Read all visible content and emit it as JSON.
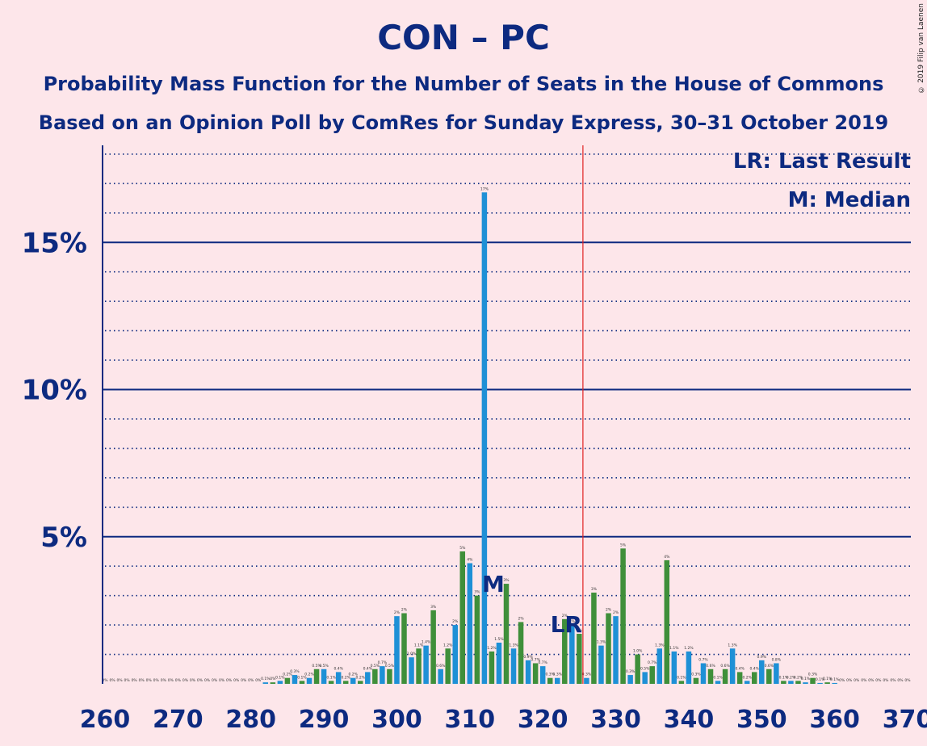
{
  "title": "CON – PC",
  "subtitle_line1": "Probability Mass Function for the Number of Seats in the House of Commons",
  "subtitle_line2": "Based on an Opinion Poll by ComRes for Sunday Express, 30–31 October 2019",
  "copyright": "© 2019 Filip van Laenen",
  "legend": {
    "lr": "LR: Last Result",
    "m": "M: Median"
  },
  "markers": {
    "lr_label": "LR",
    "m_label": "M",
    "last_result_seat": 326,
    "median_seat": 313
  },
  "colors": {
    "background": "#fde6ea",
    "blue": "#1e90d6",
    "green": "#3f8f3a",
    "axis": "#0d2a80",
    "last_result_line": "#e02020"
  },
  "chart_data": {
    "type": "bar",
    "xlim": [
      260,
      370
    ],
    "ylim": [
      0,
      18
    ],
    "yticks": [
      {
        "value": 5,
        "label": "5%"
      },
      {
        "value": 10,
        "label": "10%"
      },
      {
        "value": 15,
        "label": "15%"
      }
    ],
    "xticks": [
      260,
      270,
      280,
      290,
      300,
      310,
      320,
      330,
      340,
      350,
      360,
      370
    ],
    "minor_grid_step": 1,
    "bars": [
      {
        "seat": 260,
        "value": 0.0,
        "label": "0%"
      },
      {
        "seat": 261,
        "value": 0.0,
        "label": "0%"
      },
      {
        "seat": 262,
        "value": 0.0,
        "label": "0%"
      },
      {
        "seat": 263,
        "value": 0.0,
        "label": "0%"
      },
      {
        "seat": 264,
        "value": 0.0,
        "label": "0%"
      },
      {
        "seat": 265,
        "value": 0.0,
        "label": "0%"
      },
      {
        "seat": 266,
        "value": 0.0,
        "label": "0%"
      },
      {
        "seat": 267,
        "value": 0.0,
        "label": "0%"
      },
      {
        "seat": 268,
        "value": 0.0,
        "label": "0%"
      },
      {
        "seat": 269,
        "value": 0.0,
        "label": "0%"
      },
      {
        "seat": 270,
        "value": 0.0,
        "label": "0%"
      },
      {
        "seat": 271,
        "value": 0.0,
        "label": "0%"
      },
      {
        "seat": 272,
        "value": 0.0,
        "label": "0%"
      },
      {
        "seat": 273,
        "value": 0.0,
        "label": "0%"
      },
      {
        "seat": 274,
        "value": 0.0,
        "label": "0%"
      },
      {
        "seat": 275,
        "value": 0.0,
        "label": "0%"
      },
      {
        "seat": 276,
        "value": 0.0,
        "label": "0%"
      },
      {
        "seat": 277,
        "value": 0.0,
        "label": "0%"
      },
      {
        "seat": 278,
        "value": 0.0,
        "label": "0%"
      },
      {
        "seat": 279,
        "value": 0.0,
        "label": "0%"
      },
      {
        "seat": 280,
        "value": 0.0,
        "label": "0%"
      },
      {
        "seat": 281,
        "value": 0.0,
        "label": "0%"
      },
      {
        "seat": 282,
        "value": 0.05,
        "label": "0.1%"
      },
      {
        "seat": 283,
        "value": 0.05,
        "label": "0%"
      },
      {
        "seat": 284,
        "value": 0.1,
        "label": "0.1%"
      },
      {
        "seat": 285,
        "value": 0.2,
        "label": "0.2%"
      },
      {
        "seat": 286,
        "value": 0.3,
        "label": "0.3%"
      },
      {
        "seat": 287,
        "value": 0.1,
        "label": "0.1%"
      },
      {
        "seat": 288,
        "value": 0.2,
        "label": "0.2%"
      },
      {
        "seat": 289,
        "value": 0.5,
        "label": "0.5%"
      },
      {
        "seat": 290,
        "value": 0.5,
        "label": "0.5%"
      },
      {
        "seat": 291,
        "value": 0.1,
        "label": "0.1%"
      },
      {
        "seat": 292,
        "value": 0.4,
        "label": "0.4%"
      },
      {
        "seat": 293,
        "value": 0.1,
        "label": "0.2%"
      },
      {
        "seat": 294,
        "value": 0.2,
        "label": "0.2%"
      },
      {
        "seat": 295,
        "value": 0.1,
        "label": "0.2%"
      },
      {
        "seat": 296,
        "value": 0.4,
        "label": "0.4%"
      },
      {
        "seat": 297,
        "value": 0.5,
        "label": "0.5%"
      },
      {
        "seat": 298,
        "value": 0.6,
        "label": "0.7%"
      },
      {
        "seat": 299,
        "value": 0.5,
        "label": "0.5%"
      },
      {
        "seat": 300,
        "value": 2.3,
        "label": "2%"
      },
      {
        "seat": 301,
        "value": 2.4,
        "label": "2%"
      },
      {
        "seat": 302,
        "value": 0.9,
        "label": "1.0%"
      },
      {
        "seat": 303,
        "value": 1.2,
        "label": "1.1%"
      },
      {
        "seat": 304,
        "value": 1.3,
        "label": "1.4%"
      },
      {
        "seat": 305,
        "value": 2.5,
        "label": "3%"
      },
      {
        "seat": 306,
        "value": 0.5,
        "label": "0.6%"
      },
      {
        "seat": 307,
        "value": 1.2,
        "label": "1.2%"
      },
      {
        "seat": 308,
        "value": 2.0,
        "label": "2%"
      },
      {
        "seat": 309,
        "value": 4.5,
        "label": "5%"
      },
      {
        "seat": 310,
        "value": 4.1,
        "label": "4%"
      },
      {
        "seat": 311,
        "value": 3.0,
        "label": "3%"
      },
      {
        "seat": 312,
        "value": 16.7,
        "label": "17%"
      },
      {
        "seat": 313,
        "value": 1.1,
        "label": "1.2%"
      },
      {
        "seat": 314,
        "value": 1.4,
        "label": "1.5%"
      },
      {
        "seat": 315,
        "value": 3.4,
        "label": "3%"
      },
      {
        "seat": 316,
        "value": 1.2,
        "label": "1.3%"
      },
      {
        "seat": 317,
        "value": 2.1,
        "label": "2%"
      },
      {
        "seat": 318,
        "value": 0.8,
        "label": "0.9%"
      },
      {
        "seat": 319,
        "value": 0.7,
        "label": "0.7%"
      },
      {
        "seat": 320,
        "value": 0.6,
        "label": "0.7%"
      },
      {
        "seat": 321,
        "value": 0.2,
        "label": "0.3%"
      },
      {
        "seat": 322,
        "value": 0.2,
        "label": "0.3%"
      },
      {
        "seat": 323,
        "value": 2.2,
        "label": "2%"
      },
      {
        "seat": 324,
        "value": 2.0,
        "label": "2%"
      },
      {
        "seat": 325,
        "value": 1.7,
        "label": "2%"
      },
      {
        "seat": 326,
        "value": 0.2,
        "label": "0.3%"
      },
      {
        "seat": 327,
        "value": 3.1,
        "label": "3%"
      },
      {
        "seat": 328,
        "value": 1.3,
        "label": "1.3%"
      },
      {
        "seat": 329,
        "value": 2.4,
        "label": "2%"
      },
      {
        "seat": 330,
        "value": 2.3,
        "label": "2%"
      },
      {
        "seat": 331,
        "value": 4.6,
        "label": "5%"
      },
      {
        "seat": 332,
        "value": 0.3,
        "label": "0.3%"
      },
      {
        "seat": 333,
        "value": 1.0,
        "label": "1.0%"
      },
      {
        "seat": 334,
        "value": 0.4,
        "label": "0.5%"
      },
      {
        "seat": 335,
        "value": 0.6,
        "label": "0.7%"
      },
      {
        "seat": 336,
        "value": 1.2,
        "label": "1.3%"
      },
      {
        "seat": 337,
        "value": 4.2,
        "label": "4%"
      },
      {
        "seat": 338,
        "value": 1.1,
        "label": "1.1%"
      },
      {
        "seat": 339,
        "value": 0.1,
        "label": "0.1%"
      },
      {
        "seat": 340,
        "value": 1.1,
        "label": "1.2%"
      },
      {
        "seat": 341,
        "value": 0.2,
        "label": "0.3%"
      },
      {
        "seat": 342,
        "value": 0.7,
        "label": "0.7%"
      },
      {
        "seat": 343,
        "value": 0.5,
        "label": "0.6%"
      },
      {
        "seat": 344,
        "value": 0.1,
        "label": "0.1%"
      },
      {
        "seat": 345,
        "value": 0.5,
        "label": "0.6%"
      },
      {
        "seat": 346,
        "value": 1.2,
        "label": "1.3%"
      },
      {
        "seat": 347,
        "value": 0.4,
        "label": "0.4%"
      },
      {
        "seat": 348,
        "value": 0.1,
        "label": "0.2%"
      },
      {
        "seat": 349,
        "value": 0.4,
        "label": "0.4%"
      },
      {
        "seat": 350,
        "value": 0.8,
        "label": "0.9%"
      },
      {
        "seat": 351,
        "value": 0.5,
        "label": "0.6%"
      },
      {
        "seat": 352,
        "value": 0.7,
        "label": "0.8%"
      },
      {
        "seat": 353,
        "value": 0.1,
        "label": "0.1%"
      },
      {
        "seat": 354,
        "value": 0.1,
        "label": "0.2%"
      },
      {
        "seat": 355,
        "value": 0.1,
        "label": "0.2%"
      },
      {
        "seat": 356,
        "value": 0.05,
        "label": "0.1%"
      },
      {
        "seat": 357,
        "value": 0.2,
        "label": "0.3%"
      },
      {
        "seat": 358,
        "value": 0.03,
        "label": "0.1%"
      },
      {
        "seat": 359,
        "value": 0.05,
        "label": "0.1%"
      },
      {
        "seat": 360,
        "value": 0.03,
        "label": "0.1%"
      },
      {
        "seat": 361,
        "value": 0.0,
        "label": "0%"
      },
      {
        "seat": 362,
        "value": 0.0,
        "label": "0%"
      },
      {
        "seat": 363,
        "value": 0.0,
        "label": "0%"
      },
      {
        "seat": 364,
        "value": 0.0,
        "label": "0%"
      },
      {
        "seat": 365,
        "value": 0.0,
        "label": "0%"
      },
      {
        "seat": 366,
        "value": 0.0,
        "label": "0%"
      },
      {
        "seat": 367,
        "value": 0.0,
        "label": "0%"
      },
      {
        "seat": 368,
        "value": 0.0,
        "label": "0%"
      },
      {
        "seat": 369,
        "value": 0.0,
        "label": "0%"
      },
      {
        "seat": 370,
        "value": 0.0,
        "label": "0%"
      }
    ]
  }
}
